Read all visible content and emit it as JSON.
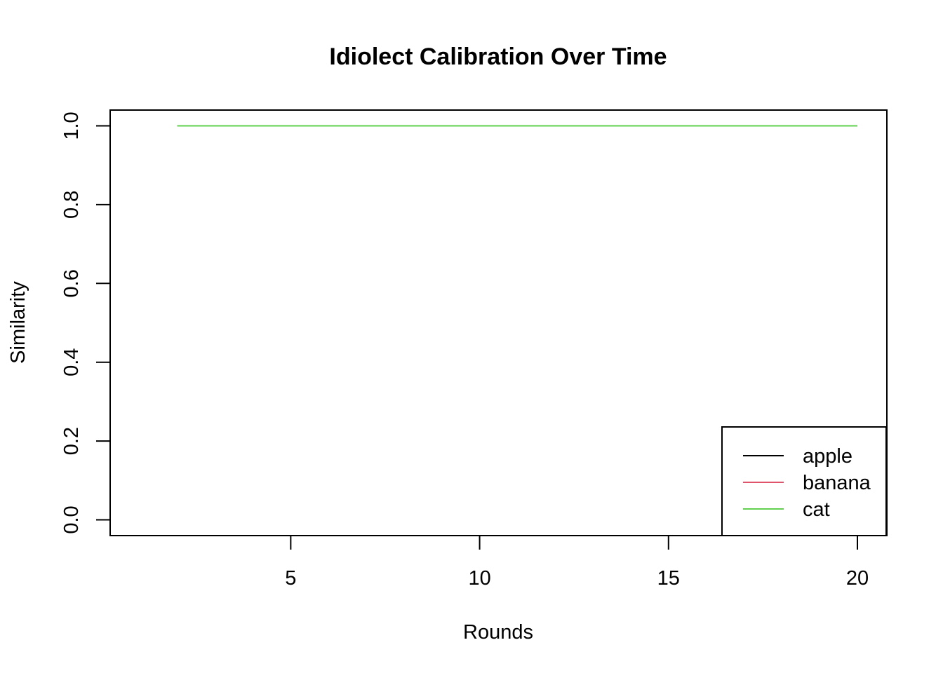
{
  "chart_data": {
    "type": "line",
    "title": "Idiolect Calibration Over Time",
    "xlabel": "Rounds",
    "ylabel": "Similarity",
    "xlim": [
      0.22,
      20.78
    ],
    "ylim": [
      -0.04,
      1.04
    ],
    "xticks": [
      5,
      10,
      15,
      20
    ],
    "yticks": [
      0.0,
      0.2,
      0.4,
      0.6,
      0.8,
      1.0
    ],
    "ytick_labels": [
      "0.0",
      "0.2",
      "0.4",
      "0.6",
      "0.8",
      "1.0"
    ],
    "legend_position": "bottom-right",
    "grid": false,
    "x": [
      2,
      3,
      4,
      5,
      6,
      7,
      8,
      9,
      10,
      11,
      12,
      13,
      14,
      15,
      16,
      17,
      18,
      19,
      20
    ],
    "series": [
      {
        "name": "apple",
        "color": "#000000",
        "values": [
          1,
          1,
          1,
          1,
          1,
          1,
          1,
          1,
          1,
          1,
          1,
          1,
          1,
          1,
          1,
          1,
          1,
          1,
          1
        ]
      },
      {
        "name": "banana",
        "color": "#DF536B",
        "values": [
          1,
          1,
          1,
          1,
          1,
          1,
          1,
          1,
          1,
          1,
          1,
          1,
          1,
          1,
          1,
          1,
          1,
          1,
          1
        ]
      },
      {
        "name": "cat",
        "color": "#61D04F",
        "values": [
          1,
          1,
          1,
          1,
          1,
          1,
          1,
          1,
          1,
          1,
          1,
          1,
          1,
          1,
          1,
          1,
          1,
          1,
          1
        ]
      }
    ]
  }
}
